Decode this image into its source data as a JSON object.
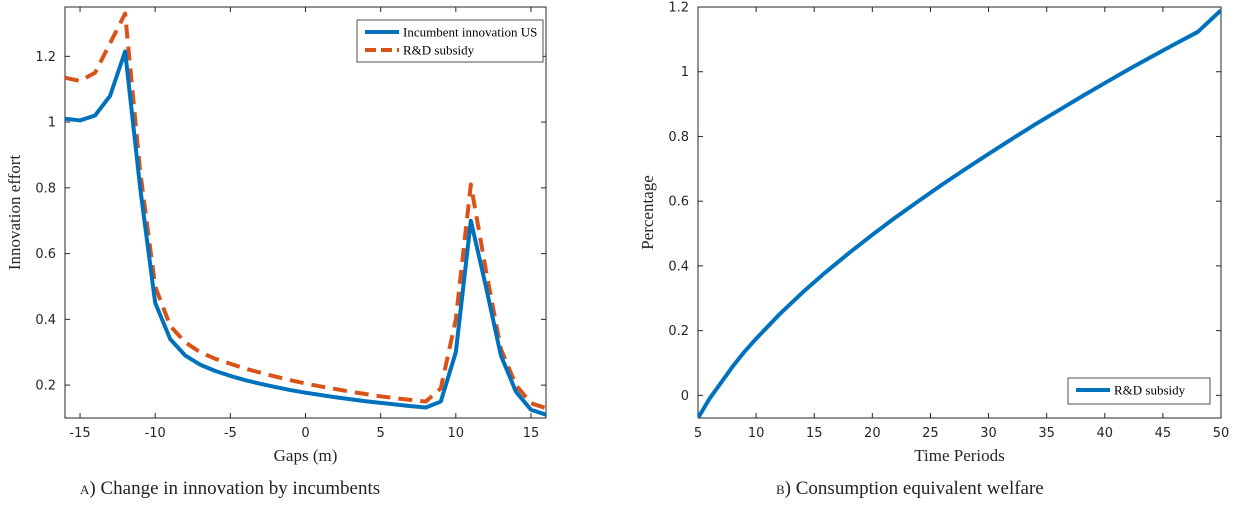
{
  "chart_data": [
    {
      "type": "line",
      "caption_letter": "a",
      "caption_text": ") Change in innovation by incumbents",
      "xlabel": "Gaps (m)",
      "ylabel": "Innovation effort",
      "xlim": [
        -16,
        16
      ],
      "ylim": [
        0.1,
        1.35
      ],
      "xticks": [
        -15,
        -10,
        -5,
        0,
        5,
        10,
        15
      ],
      "yticks": [
        0.2,
        0.4,
        0.6,
        0.8,
        1,
        1.2
      ],
      "ytick_labels": [
        "0.2",
        "0.4",
        "0.6",
        "0.8",
        "1",
        "1.2"
      ],
      "grid": false,
      "legend_position": "top-right",
      "series": [
        {
          "name": "Incumbent innovation US",
          "color": "#0072BD",
          "style": "solid",
          "x": [
            -16,
            -15,
            -14,
            -13,
            -12,
            -11,
            -10,
            -9,
            -8,
            -7,
            -6,
            -5,
            -4,
            -3,
            -2,
            -1,
            0,
            1,
            2,
            3,
            4,
            5,
            6,
            7,
            8,
            9,
            10,
            11,
            12,
            13,
            14,
            15,
            16
          ],
          "y": [
            1.01,
            1.005,
            1.02,
            1.08,
            1.215,
            0.8,
            0.45,
            0.34,
            0.29,
            0.262,
            0.243,
            0.228,
            0.215,
            0.204,
            0.194,
            0.185,
            0.177,
            0.17,
            0.163,
            0.157,
            0.151,
            0.146,
            0.141,
            0.136,
            0.132,
            0.15,
            0.3,
            0.7,
            0.5,
            0.29,
            0.18,
            0.125,
            0.11
          ]
        },
        {
          "name": "R&D subsidy",
          "color": "#D95319",
          "style": "dashed",
          "x": [
            -16,
            -15,
            -14,
            -13,
            -12,
            -11,
            -10,
            -9,
            -8,
            -7,
            -6,
            -5,
            -4,
            -3,
            -2,
            -1,
            0,
            1,
            2,
            3,
            4,
            5,
            6,
            7,
            8,
            9,
            10,
            11,
            12,
            13,
            14,
            15,
            16
          ],
          "y": [
            1.135,
            1.125,
            1.15,
            1.24,
            1.33,
            0.85,
            0.5,
            0.38,
            0.33,
            0.3,
            0.28,
            0.265,
            0.25,
            0.238,
            0.226,
            0.215,
            0.205,
            0.196,
            0.188,
            0.18,
            0.173,
            0.166,
            0.16,
            0.155,
            0.15,
            0.19,
            0.4,
            0.81,
            0.55,
            0.31,
            0.2,
            0.145,
            0.13
          ]
        }
      ]
    },
    {
      "type": "line",
      "caption_letter": "b",
      "caption_text": ") Consumption equivalent welfare",
      "xlabel": "Time Periods",
      "ylabel": "Percentage",
      "xlim": [
        5,
        50
      ],
      "ylim": [
        -0.07,
        1.2
      ],
      "xticks": [
        5,
        10,
        15,
        20,
        25,
        30,
        35,
        40,
        45,
        50
      ],
      "yticks": [
        0,
        0.2,
        0.4,
        0.6,
        0.8,
        1,
        1.2
      ],
      "ytick_labels": [
        "0",
        "0.2",
        "0.4",
        "0.6",
        "0.8",
        "1",
        "1.2"
      ],
      "grid": false,
      "legend_position": "bottom-right",
      "series": [
        {
          "name": "R&D subsidy",
          "color": "#0072BD",
          "style": "solid",
          "x": [
            5,
            6,
            7,
            8,
            9,
            10,
            12,
            14,
            16,
            18,
            20,
            22,
            24,
            26,
            28,
            30,
            32,
            34,
            36,
            38,
            40,
            42,
            44,
            46,
            48,
            50
          ],
          "y": [
            -0.07,
            -0.01,
            0.04,
            0.09,
            0.135,
            0.175,
            0.25,
            0.318,
            0.381,
            0.44,
            0.496,
            0.55,
            0.601,
            0.651,
            0.699,
            0.746,
            0.792,
            0.837,
            0.88,
            0.923,
            0.965,
            1.006,
            1.046,
            1.085,
            1.123,
            1.19
          ]
        }
      ]
    }
  ]
}
